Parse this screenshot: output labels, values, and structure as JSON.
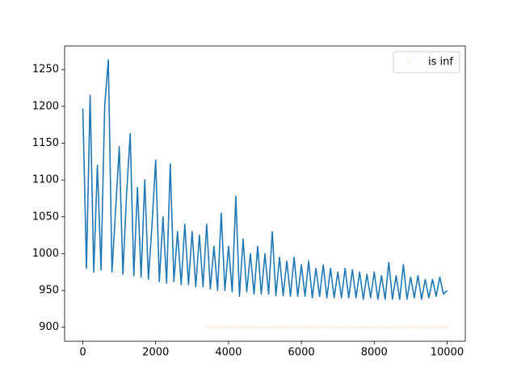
{
  "chart_data": {
    "type": "line",
    "xlim": [
      -500,
      10500
    ],
    "ylim": [
      881,
      1282
    ],
    "xticks": [
      0,
      2000,
      4000,
      6000,
      8000,
      10000
    ],
    "yticks": [
      900,
      950,
      1000,
      1050,
      1100,
      1150,
      1200,
      1250
    ],
    "legend": "upper right",
    "series": [
      {
        "type": "line",
        "color": "#1f77b4",
        "x": [
          0,
          100,
          200,
          300,
          400,
          500,
          600,
          700,
          800,
          900,
          1000,
          1100,
          1200,
          1300,
          1400,
          1500,
          1600,
          1700,
          1800,
          1900,
          2000,
          2100,
          2200,
          2300,
          2400,
          2500,
          2600,
          2700,
          2800,
          2900,
          3000,
          3100,
          3200,
          3300,
          3400,
          3500,
          3600,
          3700,
          3800,
          3900,
          4000,
          4100,
          4200,
          4300,
          4400,
          4500,
          4600,
          4700,
          4800,
          4900,
          5000,
          5100,
          5200,
          5300,
          5400,
          5500,
          5600,
          5700,
          5800,
          5900,
          6000,
          6100,
          6200,
          6300,
          6400,
          6500,
          6600,
          6700,
          6800,
          6900,
          7000,
          7100,
          7200,
          7300,
          7400,
          7500,
          7600,
          7700,
          7800,
          7900,
          8000,
          8100,
          8200,
          8300,
          8400,
          8500,
          8600,
          8700,
          8800,
          8900,
          9000,
          9100,
          9200,
          9300,
          9400,
          9500,
          9600,
          9700,
          9800,
          9900,
          10000
        ],
        "values": [
          1197,
          980,
          1215,
          975,
          1120,
          978,
          1200,
          1263,
          975,
          1060,
          1145,
          972,
          1080,
          1163,
          970,
          1090,
          968,
          1100,
          965,
          1040,
          1127,
          962,
          1050,
          960,
          1122,
          962,
          1030,
          958,
          1040,
          958,
          1030,
          955,
          1025,
          955,
          1040,
          952,
          1010,
          950,
          1055,
          950,
          1010,
          948,
          1078,
          942,
          1020,
          948,
          1000,
          945,
          1010,
          945,
          1000,
          945,
          1030,
          943,
          995,
          943,
          990,
          942,
          995,
          942,
          985,
          942,
          990,
          940,
          980,
          942,
          985,
          940,
          980,
          940,
          975,
          940,
          980,
          940,
          978,
          940,
          975,
          938,
          972,
          940,
          975,
          938,
          970,
          938,
          988,
          938,
          970,
          938,
          985,
          938,
          968,
          940,
          970,
          938,
          965,
          940,
          965,
          942,
          968,
          945,
          950
        ]
      },
      {
        "type": "scatter",
        "name": "is inf",
        "color": "#ff7f0e",
        "alpha": 0.15,
        "x": [
          3400,
          3500,
          3600,
          3700,
          3800,
          3900,
          4000,
          4100,
          4200,
          4300,
          4400,
          4500,
          4600,
          4700,
          4800,
          4900,
          5000,
          5100,
          5200,
          5300,
          5400,
          5500,
          5600,
          5700,
          5800,
          5900,
          6000,
          6100,
          6200,
          6300,
          6400,
          6500,
          6600,
          6700,
          6800,
          6900,
          7000,
          7100,
          7200,
          7300,
          7400,
          7500,
          7600,
          7700,
          7800,
          7900,
          8000,
          8100,
          8200,
          8300,
          8400,
          8500,
          8600,
          8700,
          8800,
          8900,
          9000,
          9100,
          9200,
          9300,
          9400,
          9500,
          9600,
          9700,
          9800,
          9900,
          10000
        ],
        "values": [
          900,
          900,
          900,
          900,
          900,
          900,
          900,
          900,
          900,
          900,
          900,
          900,
          900,
          900,
          900,
          900,
          900,
          900,
          900,
          900,
          900,
          900,
          900,
          900,
          900,
          900,
          900,
          900,
          900,
          900,
          900,
          900,
          900,
          900,
          900,
          900,
          900,
          900,
          900,
          900,
          900,
          900,
          900,
          900,
          900,
          900,
          900,
          900,
          900,
          900,
          900,
          900,
          900,
          900,
          900,
          900,
          900,
          900,
          900,
          900,
          900,
          900,
          900,
          900,
          900,
          900,
          900
        ]
      }
    ]
  }
}
